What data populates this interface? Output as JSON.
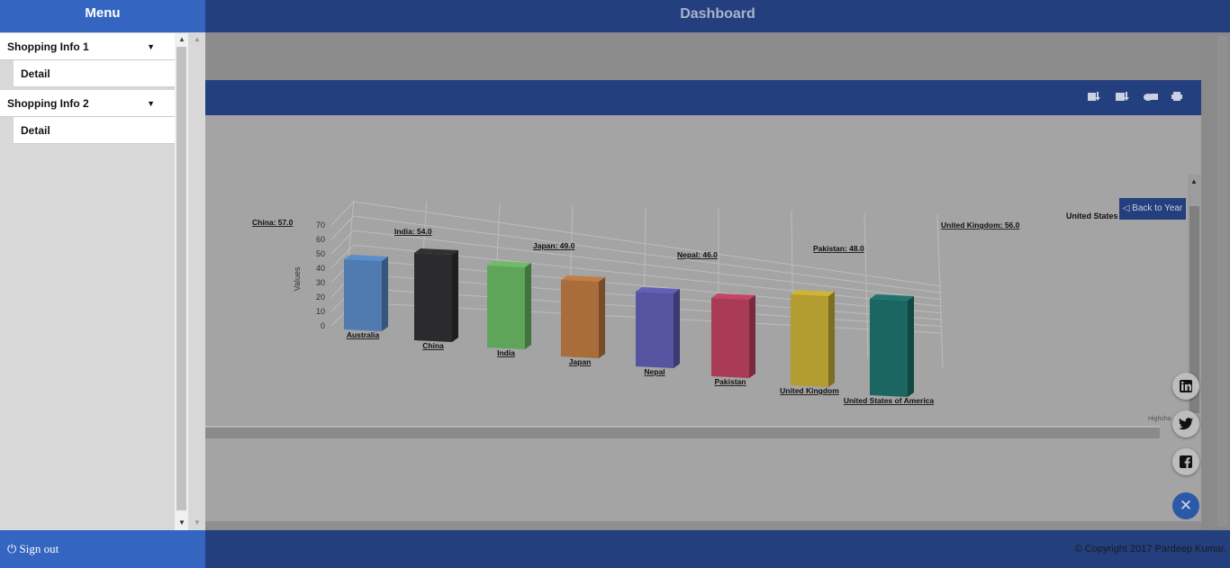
{
  "header": {
    "title": "Dashboard"
  },
  "sidebar": {
    "title": "Menu",
    "groups": [
      {
        "label": "Shopping Info 1",
        "sub": "Detail"
      },
      {
        "label": "Shopping Info 2",
        "sub": "Detail"
      }
    ],
    "signout": "Sign out"
  },
  "footer": {
    "copyright": "© Copyright 2017 Pardeep Kumar."
  },
  "chart": {
    "back_button": "◁ Back to Year",
    "credits": "Highcha",
    "overflow_label": "United States"
  },
  "chart_data": {
    "type": "bar",
    "title": "",
    "xlabel": "",
    "ylabel": "Values",
    "ylim": [
      0,
      70
    ],
    "yticks": [
      0,
      10,
      20,
      30,
      40,
      50,
      60,
      70
    ],
    "categories": [
      "Australia",
      "China",
      "India",
      "Japan",
      "Nepal",
      "Pakistan",
      "United Kingdom",
      "United States of America"
    ],
    "values": [
      null,
      57.0,
      54.0,
      49.0,
      46.0,
      48.0,
      56.0,
      null
    ],
    "data_labels": [
      "",
      "China: 57.0",
      "India: 54.0",
      "Japan: 49.0",
      "Nepal: 46.0",
      "Pakistan: 48.0",
      "United Kingdom: 56.0",
      ""
    ],
    "colors": [
      "#4f7bb0",
      "#2b2b2d",
      "#5ea459",
      "#a96c3b",
      "#5653a0",
      "#aa3b57",
      "#b39d31",
      "#1b6660"
    ]
  },
  "colors": {
    "header": "#243f7e",
    "sidebar_header": "#3465c0",
    "overlay_bg": "#8e8e8e"
  },
  "social": [
    "linkedin-icon",
    "twitter-icon",
    "facebook-icon"
  ]
}
